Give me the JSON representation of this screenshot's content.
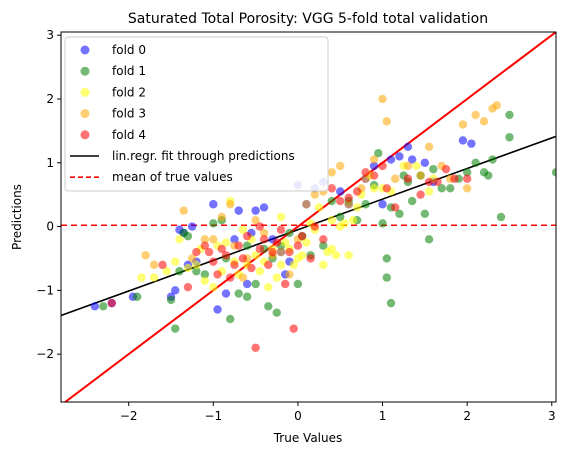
{
  "chart_data": {
    "type": "scatter",
    "title": "Saturated Total Porosity: VGG 5-fold total validation",
    "xlabel": "True Values",
    "ylabel": "Predictions",
    "xlim": [
      -2.8,
      3.05
    ],
    "ylim": [
      -2.75,
      3.05
    ],
    "xticks": [
      -2,
      -1,
      0,
      1,
      2,
      3
    ],
    "yticks": [
      -2,
      -1,
      0,
      1,
      2,
      3
    ],
    "grid": false,
    "legend_position": "top-left",
    "series": [
      {
        "name": "fold 0",
        "color": "#0000ff",
        "points": [
          [
            -2.4,
            -1.25
          ],
          [
            -2.2,
            -1.2
          ],
          [
            -1.95,
            -1.1
          ],
          [
            -1.5,
            -1.1
          ],
          [
            -1.45,
            -1.0
          ],
          [
            -1.4,
            -0.05
          ],
          [
            -1.35,
            -0.1
          ],
          [
            -1.25,
            -0.0
          ],
          [
            -1.3,
            -0.6
          ],
          [
            -1.2,
            -0.55
          ],
          [
            -1.0,
            0.35
          ],
          [
            -0.95,
            -1.3
          ],
          [
            -0.85,
            -1.05
          ],
          [
            -0.75,
            -0.2
          ],
          [
            -0.7,
            0.25
          ],
          [
            -0.6,
            -0.9
          ],
          [
            -0.55,
            -0.1
          ],
          [
            -0.5,
            0.25
          ],
          [
            -0.4,
            0.3
          ],
          [
            -0.3,
            -0.2
          ],
          [
            -0.2,
            -0.4
          ],
          [
            -0.1,
            -0.55
          ],
          [
            0.0,
            0.65
          ],
          [
            0.1,
            0.35
          ],
          [
            0.2,
            0.6
          ],
          [
            0.3,
            0.7
          ],
          [
            0.5,
            0.55
          ],
          [
            0.6,
            0.35
          ],
          [
            0.8,
            0.75
          ],
          [
            0.9,
            0.95
          ],
          [
            1.0,
            0.35
          ],
          [
            1.1,
            1.05
          ],
          [
            1.2,
            1.1
          ],
          [
            1.3,
            1.25
          ],
          [
            1.35,
            1.05
          ],
          [
            1.5,
            1.0
          ],
          [
            1.6,
            0.7
          ],
          [
            1.95,
            1.35
          ],
          [
            2.05,
            1.3
          ],
          [
            -0.15,
            -0.75
          ]
        ]
      },
      {
        "name": "fold 1",
        "color": "#008000",
        "points": [
          [
            -2.85,
            -0.8
          ],
          [
            -2.3,
            -1.25
          ],
          [
            -1.9,
            -1.1
          ],
          [
            -1.5,
            -1.15
          ],
          [
            -1.45,
            -1.6
          ],
          [
            -1.35,
            -0.1
          ],
          [
            -1.4,
            -0.7
          ],
          [
            -1.3,
            -0.15
          ],
          [
            -1.1,
            -0.75
          ],
          [
            -1.0,
            0.05
          ],
          [
            -0.9,
            0.1
          ],
          [
            -0.85,
            -0.5
          ],
          [
            -0.8,
            -1.45
          ],
          [
            -0.7,
            -1.05
          ],
          [
            -0.6,
            -1.1
          ],
          [
            -0.5,
            -0.9
          ],
          [
            -0.4,
            -0.35
          ],
          [
            -0.35,
            -1.25
          ],
          [
            -0.25,
            -1.35
          ],
          [
            -0.3,
            -0.5
          ],
          [
            -0.2,
            -0.3
          ],
          [
            -0.1,
            -0.1
          ],
          [
            0.0,
            -0.9
          ],
          [
            0.05,
            -0.15
          ],
          [
            0.15,
            -0.45
          ],
          [
            0.3,
            -0.3
          ],
          [
            0.4,
            0.4
          ],
          [
            0.5,
            0.15
          ],
          [
            0.7,
            0.1
          ],
          [
            0.8,
            0.35
          ],
          [
            0.9,
            0.65
          ],
          [
            0.95,
            1.15
          ],
          [
            1.05,
            -0.5
          ],
          [
            1.05,
            -0.8
          ],
          [
            1.1,
            -1.2
          ],
          [
            1.1,
            0.3
          ],
          [
            1.2,
            0.2
          ],
          [
            1.25,
            0.8
          ],
          [
            1.3,
            0.7
          ],
          [
            1.35,
            0.4
          ],
          [
            1.45,
            0.8
          ],
          [
            1.5,
            0.2
          ],
          [
            1.55,
            -0.2
          ],
          [
            1.6,
            0.9
          ],
          [
            1.7,
            0.6
          ],
          [
            1.8,
            0.6
          ],
          [
            1.9,
            0.75
          ],
          [
            2.0,
            0.85
          ],
          [
            2.1,
            1.0
          ],
          [
            2.2,
            0.85
          ],
          [
            2.25,
            0.8
          ],
          [
            2.3,
            1.05
          ],
          [
            2.4,
            0.15
          ],
          [
            2.5,
            1.4
          ],
          [
            2.5,
            1.75
          ],
          [
            3.05,
            0.85
          ],
          [
            -0.6,
            -0.3
          ],
          [
            -1.2,
            -0.7
          ],
          [
            0.6,
            0.4
          ],
          [
            1.0,
            0.05
          ]
        ]
      },
      {
        "name": "fold 2",
        "color": "#ffff00",
        "points": [
          [
            -1.85,
            -0.8
          ],
          [
            -1.7,
            -0.8
          ],
          [
            -1.55,
            -0.7
          ],
          [
            -1.45,
            -0.55
          ],
          [
            -1.4,
            -0.2
          ],
          [
            -1.3,
            -0.65
          ],
          [
            -1.2,
            -0.6
          ],
          [
            -1.1,
            -0.85
          ],
          [
            -1.0,
            -0.95
          ],
          [
            -0.9,
            -0.7
          ],
          [
            -0.85,
            -0.25
          ],
          [
            -0.8,
            0.4
          ],
          [
            -0.75,
            -0.55
          ],
          [
            -0.7,
            -0.75
          ],
          [
            -0.6,
            -0.6
          ],
          [
            -0.55,
            -0.2
          ],
          [
            -0.5,
            -0.45
          ],
          [
            -0.45,
            -0.7
          ],
          [
            -0.4,
            -0.55
          ],
          [
            -0.35,
            -0.95
          ],
          [
            -0.3,
            -0.35
          ],
          [
            -0.25,
            -0.8
          ],
          [
            -0.2,
            -0.6
          ],
          [
            -0.15,
            -0.25
          ],
          [
            -0.1,
            -0.35
          ],
          [
            -0.05,
            -0.6
          ],
          [
            0.0,
            -0.5
          ],
          [
            0.05,
            -0.45
          ],
          [
            0.1,
            -0.25
          ],
          [
            0.15,
            0.05
          ],
          [
            0.2,
            -0.05
          ],
          [
            0.25,
            0.3
          ],
          [
            0.3,
            -0.6
          ],
          [
            0.35,
            -0.4
          ],
          [
            0.4,
            -0.35
          ],
          [
            0.45,
            -0.45
          ],
          [
            0.5,
            0.0
          ],
          [
            0.55,
            0.05
          ],
          [
            0.6,
            -0.45
          ],
          [
            0.65,
            0.1
          ],
          [
            0.7,
            0.3
          ],
          [
            0.75,
            0.5
          ],
          [
            0.85,
            0.8
          ],
          [
            0.9,
            0.6
          ],
          [
            1.0,
            0.6
          ],
          [
            1.1,
            0.55
          ],
          [
            1.25,
            0.95
          ],
          [
            1.4,
            0.95
          ],
          [
            1.55,
            0.55
          ],
          [
            1.6,
            0.75
          ],
          [
            -0.65,
            -0.05
          ],
          [
            -0.95,
            -0.3
          ],
          [
            -1.15,
            -0.35
          ],
          [
            0.4,
            0.1
          ],
          [
            -0.2,
            0.15
          ]
        ]
      },
      {
        "name": "fold 3",
        "color": "#ffa500",
        "points": [
          [
            -1.8,
            -0.45
          ],
          [
            -1.7,
            -0.6
          ],
          [
            -1.35,
            0.25
          ],
          [
            -1.25,
            -0.5
          ],
          [
            -1.1,
            -0.2
          ],
          [
            -1.0,
            -0.2
          ],
          [
            -0.9,
            0.15
          ],
          [
            -0.8,
            0.35
          ],
          [
            -0.75,
            -0.3
          ],
          [
            -0.65,
            -0.8
          ],
          [
            -0.6,
            -0.5
          ],
          [
            -0.5,
            0.1
          ],
          [
            -0.4,
            -0.1
          ],
          [
            -0.3,
            -0.45
          ],
          [
            -0.2,
            -0.4
          ],
          [
            -0.1,
            -0.75
          ],
          [
            0.0,
            -0.2
          ],
          [
            0.1,
            0.35
          ],
          [
            0.2,
            0.5
          ],
          [
            0.3,
            0.55
          ],
          [
            0.4,
            0.85
          ],
          [
            0.5,
            0.95
          ],
          [
            0.6,
            0.35
          ],
          [
            0.75,
            0.6
          ],
          [
            0.8,
            0.75
          ],
          [
            0.9,
            1.05
          ],
          [
            1.0,
            2.0
          ],
          [
            1.05,
            1.65
          ],
          [
            1.15,
            0.75
          ],
          [
            1.3,
            0.95
          ],
          [
            1.45,
            0.8
          ],
          [
            1.55,
            1.25
          ],
          [
            1.7,
            0.95
          ],
          [
            1.8,
            0.75
          ],
          [
            1.95,
            1.6
          ],
          [
            2.1,
            1.75
          ],
          [
            2.2,
            1.65
          ],
          [
            2.3,
            1.85
          ],
          [
            2.35,
            1.9
          ],
          [
            2.0,
            0.6
          ]
        ]
      },
      {
        "name": "fold 4",
        "color": "#ff0000",
        "points": [
          [
            -2.2,
            -1.2
          ],
          [
            -1.6,
            -0.6
          ],
          [
            -1.3,
            -0.95
          ],
          [
            -1.1,
            -0.3
          ],
          [
            -1.05,
            -0.4
          ],
          [
            -1.0,
            -0.55
          ],
          [
            -0.95,
            -0.75
          ],
          [
            -0.9,
            -0.35
          ],
          [
            -0.85,
            -0.45
          ],
          [
            -0.8,
            -0.8
          ],
          [
            -0.75,
            -0.6
          ],
          [
            -0.7,
            -0.3
          ],
          [
            -0.65,
            -0.5
          ],
          [
            -0.6,
            -0.15
          ],
          [
            -0.55,
            -0.65
          ],
          [
            -0.5,
            -1.9
          ],
          [
            -0.45,
            -0.35
          ],
          [
            -0.4,
            -0.2
          ],
          [
            -0.35,
            -0.6
          ],
          [
            -0.3,
            -0.4
          ],
          [
            -0.25,
            -0.25
          ],
          [
            -0.2,
            -0.05
          ],
          [
            -0.15,
            -0.9
          ],
          [
            -0.1,
            -0.4
          ],
          [
            -0.05,
            -1.6
          ],
          [
            0.0,
            -0.3
          ],
          [
            0.05,
            -0.15
          ],
          [
            0.15,
            -0.5
          ],
          [
            0.2,
            0.0
          ],
          [
            0.3,
            -0.2
          ],
          [
            0.4,
            0.6
          ],
          [
            0.5,
            0.4
          ],
          [
            0.6,
            0.45
          ],
          [
            0.7,
            0.55
          ],
          [
            0.8,
            0.85
          ],
          [
            0.9,
            0.8
          ],
          [
            1.0,
            0.95
          ],
          [
            1.05,
            0.6
          ],
          [
            1.15,
            0.3
          ],
          [
            1.3,
            0.75
          ],
          [
            1.45,
            0.5
          ],
          [
            1.55,
            0.7
          ],
          [
            1.65,
            0.7
          ],
          [
            1.75,
            0.9
          ],
          [
            1.85,
            0.75
          ],
          [
            2.0,
            0.75
          ],
          [
            -1.2,
            -0.4
          ],
          [
            -0.45,
            0.0
          ]
        ]
      }
    ],
    "lines": [
      {
        "name": "lin.regr. fit through predictions",
        "color": "#000000",
        "style": "solid",
        "slope": 0.48,
        "intercept": -0.05
      },
      {
        "name": "mean of true values",
        "color": "#ff0000",
        "style": "dashed",
        "y": 0.02
      },
      {
        "name": "",
        "color": "#ff0000",
        "style": "solid",
        "slope": 1.0,
        "intercept": 0.0
      }
    ]
  }
}
